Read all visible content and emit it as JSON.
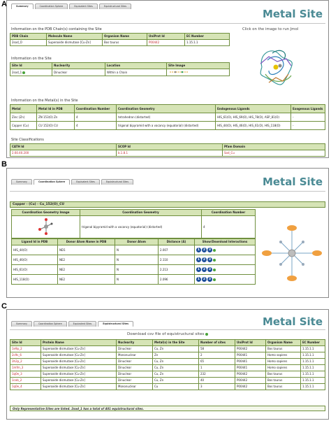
{
  "panelA": {
    "label": "A",
    "tabs": [
      "Summary",
      "Coordination Sphere",
      "Equivalent Sites",
      "Equistructural Sites"
    ],
    "title": "Metal Site",
    "jmol_hint": "Click on the image to run Jmol",
    "pdb_caption": "Information on the PDB Chain(s) containing the Site",
    "pdb_headers": [
      "PDB Chain",
      "Molecule Name",
      "Organism Name",
      "UniProt Id",
      "EC Number"
    ],
    "pdb_rows": [
      [
        "2sod_O",
        "Superoxide dismutase [Cu-Zn]",
        "Bos taurus",
        "P00442",
        "1.15.1.1"
      ]
    ],
    "site_caption": "Information on the Site",
    "site_headers": [
      "Site Id",
      "Nuclearity",
      "Location",
      "Site Image"
    ],
    "site_rows": [
      [
        "2sod_1",
        "Dinuclear",
        "Within a Chain",
        ""
      ]
    ],
    "metal_caption": "Information on the Metal(s) in the Site",
    "metal_headers": [
      "Metal",
      "Metal Id in PDB",
      "Coordination Number",
      "Coordination Geometry",
      "Endogenous Ligands",
      "Exogenous Ligands"
    ],
    "metal_rows": [
      [
        "Zinc (Zn)",
        "ZN 153(O) Zn",
        "4",
        "tetrahedron (distorted)",
        "HIS_61(O), HIS_69(O), HIS_78(O), ASP_81(O)",
        "-"
      ],
      [
        "Copper (Cu)",
        "CU 152(O) CU",
        "4",
        "trigonal bipyramid with a vacancy (equatorial) (distorted)",
        "HIS_44(O), HIS_46(O), HIS_61(O), HIS_118(O)",
        "-"
      ]
    ],
    "class_caption": "Site Classifications",
    "class_headers": [
      "CATH Id",
      "SCOP Id",
      "Pfam Domain"
    ],
    "class_rows": [
      [
        "2.60.40.200",
        "b.1.8.1",
        "Sod_Cu"
      ]
    ]
  },
  "panelB": {
    "label": "B",
    "tabs": [
      "Summary",
      "Coordination Sphere",
      "Equivalent Sites",
      "Equistructural Sites"
    ],
    "title": "Metal Site",
    "section": "Copper - (Cu) - Cu_152(O)_CU",
    "geo_headers": [
      "Coordination Geometry Image",
      "Coordination Geometry",
      "Coordination Number"
    ],
    "geo_row": [
      "",
      "trigonal bipyramid with a vacancy (equatorial) (distorted)",
      "4"
    ],
    "lig_headers": [
      "Ligand Id in PDB",
      "Donor Atom Name in PDB",
      "Donor Atom",
      "Distance (Å)",
      "Show/Download Interactions"
    ],
    "lig_rows": [
      [
        "HIS_44(O)",
        "ND1",
        "N",
        "2.007"
      ],
      [
        "HIS_46(O)",
        "NE2",
        "N",
        "2.110"
      ],
      [
        "HIS_61(O)",
        "NE2",
        "N",
        "2.213"
      ],
      [
        "HIS_118(O)",
        "NE2",
        "N",
        "2.096"
      ]
    ],
    "icons": [
      "1",
      "2",
      "3"
    ]
  },
  "panelC": {
    "label": "C",
    "tabs": [
      "Summary",
      "Coordination Sphere",
      "Equivalent Sites",
      "Equistructural Sites"
    ],
    "title": "Metal Site",
    "download": "Download csv file of equistructural sites",
    "headers": [
      "Site Id",
      "Protein Name",
      "Nuclearity",
      "Metal(s) in the Site",
      "Number of sites",
      "UniProt Id",
      "Organism Name",
      "EC Number"
    ],
    "rows": [
      [
        "1e9p_2",
        "Superoxide dismutase [Cu-Zn]",
        "Dinuclear",
        "Cu, Zn",
        "58",
        "P00442",
        "Bos taurus",
        "1.15.1.1"
      ],
      [
        "2c9s_6",
        "Superoxide dismutase [Cu-Zn]",
        "Mononuclear",
        "Zn",
        "2",
        "P00441",
        "Homo sapiens",
        "1.15.1.1"
      ],
      [
        "3h2p_2",
        "Superoxide dismutase [Cu-Zn]",
        "Dinuclear",
        "Cu, Zn",
        "65",
        "P00441",
        "Homo sapiens",
        "1.15.1.1"
      ],
      [
        "1mfm_3",
        "Superoxide dismutase [Cu-Zn]",
        "Dinuclear",
        "Cu, Zn",
        "1",
        "P00441",
        "Homo sapiens",
        "1.15.1.1"
      ],
      [
        "1q0e_3",
        "Superoxide dismutase [Cu-Zn]",
        "Dinuclear",
        "Cu, Zn",
        "232",
        "P00442",
        "Bos taurus",
        "1.15.1.1"
      ],
      [
        "1cob_2",
        "Superoxide dismutase [Cu-Zn]",
        "Dinuclear",
        "Cu, Zn",
        "40",
        "P00442",
        "Bos taurus",
        "1.15.1.1"
      ],
      [
        "1q0e_4",
        "Superoxide dismutase [Cu-Zn]",
        "Mononuclear",
        "Cu",
        "3",
        "P00442",
        "Bos taurus",
        "1.15.1.1"
      ]
    ],
    "note": "Only Representative Sites are listed. 2sod_1 has a total of 401 equistructural sites."
  },
  "colors": {
    "accent": "#4a8a94",
    "header_green": "#d6e4b6",
    "link_red": "#c2272d",
    "icon_blue": "#1c4e9a"
  }
}
